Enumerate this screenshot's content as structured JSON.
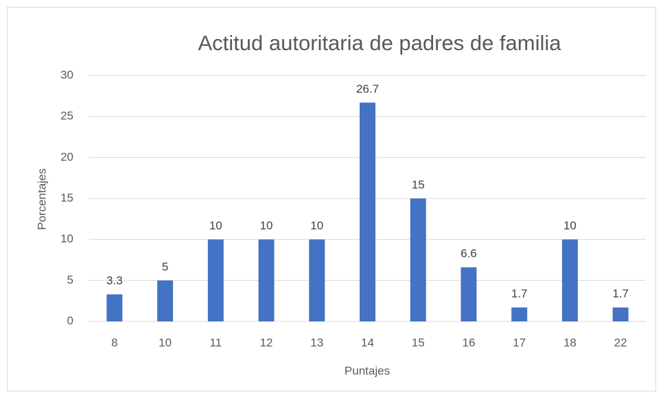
{
  "chart_data": {
    "type": "bar",
    "title": "Actitud autoritaria de padres de familia",
    "x_label": "Puntajes",
    "y_label": "Porcentajes",
    "categories": [
      "8",
      "10",
      "11",
      "12",
      "13",
      "14",
      "15",
      "16",
      "17",
      "18",
      "22"
    ],
    "values": [
      3.3,
      5,
      10,
      10,
      10,
      26.7,
      15,
      6.6,
      1.7,
      10,
      1.7
    ],
    "color": "#4472c4",
    "ylim": [
      0,
      30
    ],
    "yticks": [
      0,
      5,
      10,
      15,
      20,
      25,
      30
    ],
    "grid": true,
    "data_labels": true
  }
}
